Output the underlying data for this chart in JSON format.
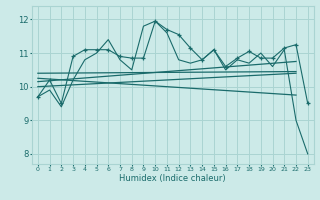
{
  "bg_color": "#cceae8",
  "grid_color": "#aad4d2",
  "line_color": "#1a6b6b",
  "xlabel": "Humidex (Indice chaleur)",
  "ylim": [
    7.7,
    12.4
  ],
  "xlim": [
    -0.5,
    23.5
  ],
  "yticks": [
    8,
    9,
    10,
    11,
    12
  ],
  "xticks": [
    0,
    1,
    2,
    3,
    4,
    5,
    6,
    7,
    8,
    9,
    10,
    11,
    12,
    13,
    14,
    15,
    16,
    17,
    18,
    19,
    20,
    21,
    22,
    23
  ],
  "x_labels": [
    "0",
    "1",
    "2",
    "3",
    "4",
    "5",
    "6",
    "7",
    "8",
    "9",
    "10",
    "11",
    "12",
    "13",
    "14",
    "15",
    "16",
    "17",
    "18",
    "19",
    "20",
    "21",
    "22",
    "23"
  ],
  "jagged_x": [
    0,
    1,
    2,
    3,
    4,
    5,
    6,
    7,
    8,
    9,
    10,
    11,
    12,
    13,
    14,
    15,
    16,
    17,
    18,
    19,
    20,
    21,
    22,
    23
  ],
  "jagged_y": [
    9.7,
    10.2,
    9.5,
    10.9,
    11.1,
    11.1,
    11.1,
    10.9,
    10.85,
    10.85,
    11.95,
    11.7,
    11.55,
    11.15,
    10.8,
    11.1,
    10.6,
    10.85,
    11.05,
    10.85,
    10.85,
    11.15,
    11.25,
    9.5
  ],
  "smooth1_x": [
    0,
    1,
    2,
    3,
    4,
    5,
    6,
    7,
    8,
    9,
    10,
    11,
    12,
    13,
    14,
    15,
    16,
    17,
    18,
    19,
    20,
    21,
    22,
    23
  ],
  "smooth1_y": [
    9.7,
    9.9,
    9.4,
    10.2,
    10.8,
    11.0,
    11.4,
    10.8,
    10.5,
    11.8,
    11.95,
    11.6,
    10.8,
    10.7,
    10.8,
    11.1,
    10.5,
    10.8,
    10.7,
    11.0,
    10.6,
    11.1,
    9.0,
    8.0
  ],
  "trend1_x": [
    0,
    22
  ],
  "trend1_y": [
    10.15,
    10.75
  ],
  "trend2_x": [
    0,
    22
  ],
  "trend2_y": [
    10.0,
    10.4
  ],
  "trend3_x": [
    0,
    22
  ],
  "trend3_y": [
    10.25,
    9.75
  ],
  "trend4_x": [
    0,
    22
  ],
  "trend4_y": [
    10.4,
    10.45
  ]
}
